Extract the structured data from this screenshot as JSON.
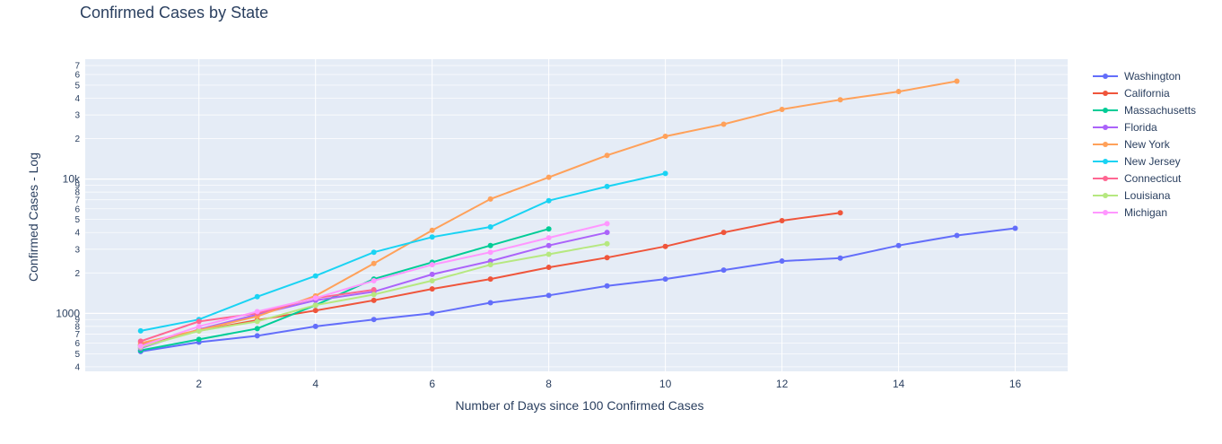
{
  "chart_data": {
    "type": "line",
    "title": "Confirmed Cases by State",
    "xlabel": "Number of Days since 100 Confirmed Cases",
    "ylabel": "Confirmed Cases - Log",
    "x_scale": "linear",
    "y_scale": "log",
    "xlim": [
      0.05,
      16.9
    ],
    "ylim": [
      370,
      78000
    ],
    "x_ticks": [
      2,
      4,
      6,
      8,
      10,
      12,
      14,
      16
    ],
    "y_major_ticks": [
      {
        "value": 1000,
        "label": "1000"
      },
      {
        "value": 10000,
        "label": "10k"
      }
    ],
    "y_minor_ticks": [
      {
        "value": 400,
        "label": "4"
      },
      {
        "value": 500,
        "label": "5"
      },
      {
        "value": 600,
        "label": "6"
      },
      {
        "value": 700,
        "label": "7"
      },
      {
        "value": 800,
        "label": "8"
      },
      {
        "value": 900,
        "label": "9"
      },
      {
        "value": 2000,
        "label": "2"
      },
      {
        "value": 3000,
        "label": "3"
      },
      {
        "value": 4000,
        "label": "4"
      },
      {
        "value": 5000,
        "label": "5"
      },
      {
        "value": 6000,
        "label": "6"
      },
      {
        "value": 7000,
        "label": "7"
      },
      {
        "value": 8000,
        "label": "8"
      },
      {
        "value": 9000,
        "label": "9"
      },
      {
        "value": 20000,
        "label": "2"
      },
      {
        "value": 30000,
        "label": "3"
      },
      {
        "value": 40000,
        "label": "4"
      },
      {
        "value": 50000,
        "label": "5"
      },
      {
        "value": 60000,
        "label": "6"
      },
      {
        "value": 70000,
        "label": "7"
      }
    ],
    "grid": true,
    "legend_position": "top-right",
    "series": [
      {
        "name": "Washington",
        "color": "#636efa",
        "x": [
          1,
          2,
          3,
          4,
          5,
          6,
          7,
          8,
          9,
          10,
          11,
          12,
          13,
          14,
          15,
          16
        ],
        "y": [
          520,
          610,
          680,
          800,
          900,
          1000,
          1200,
          1360,
          1600,
          1800,
          2100,
          2450,
          2580,
          3200,
          3800,
          4300
        ]
      },
      {
        "name": "California",
        "color": "#ef553b",
        "x": [
          1,
          2,
          3,
          4,
          5,
          6,
          7,
          8,
          9,
          10,
          11,
          12,
          13
        ],
        "y": [
          580,
          740,
          890,
          1050,
          1250,
          1520,
          1800,
          2200,
          2600,
          3150,
          4000,
          4900,
          5600
        ]
      },
      {
        "name": "Massachusetts",
        "color": "#00cc96",
        "x": [
          1,
          2,
          3,
          4,
          5,
          6,
          7,
          8
        ],
        "y": [
          530,
          640,
          770,
          1150,
          1800,
          2400,
          3200,
          4250
        ]
      },
      {
        "name": "Florida",
        "color": "#ab63fa",
        "x": [
          1,
          2,
          3,
          4,
          5,
          6,
          7,
          8,
          9
        ],
        "y": [
          550,
          760,
          980,
          1250,
          1450,
          1950,
          2450,
          3200,
          4000
        ]
      },
      {
        "name": "New York",
        "color": "#ffa15a",
        "x": [
          1,
          2,
          3,
          4,
          5,
          6,
          7,
          8,
          9,
          10,
          11,
          12,
          13,
          14,
          15
        ],
        "y": [
          600,
          750,
          950,
          1350,
          2350,
          4150,
          7100,
          10300,
          15000,
          20800,
          25600,
          33000,
          38900,
          44800,
          53500
        ]
      },
      {
        "name": "New Jersey",
        "color": "#19d3f3",
        "x": [
          1,
          2,
          3,
          4,
          5,
          6,
          7,
          8,
          9,
          10
        ],
        "y": [
          740,
          900,
          1330,
          1900,
          2850,
          3700,
          4400,
          6900,
          8800,
          11000
        ]
      },
      {
        "name": "Connecticut",
        "color": "#ff6692",
        "x": [
          1,
          2,
          3,
          4,
          5
        ],
        "y": [
          620,
          870,
          1000,
          1300,
          1500
        ]
      },
      {
        "name": "Louisiana",
        "color": "#b6e880",
        "x": [
          1,
          2,
          3,
          4,
          5,
          6,
          7,
          8,
          9
        ],
        "y": [
          560,
          740,
          870,
          1150,
          1380,
          1750,
          2300,
          2750,
          3300
        ]
      },
      {
        "name": "Michigan",
        "color": "#ff97ff",
        "x": [
          1,
          2,
          3,
          4,
          5,
          6,
          7,
          8,
          9
        ],
        "y": [
          570,
          800,
          1030,
          1300,
          1750,
          2300,
          2850,
          3650,
          4650
        ]
      }
    ]
  }
}
